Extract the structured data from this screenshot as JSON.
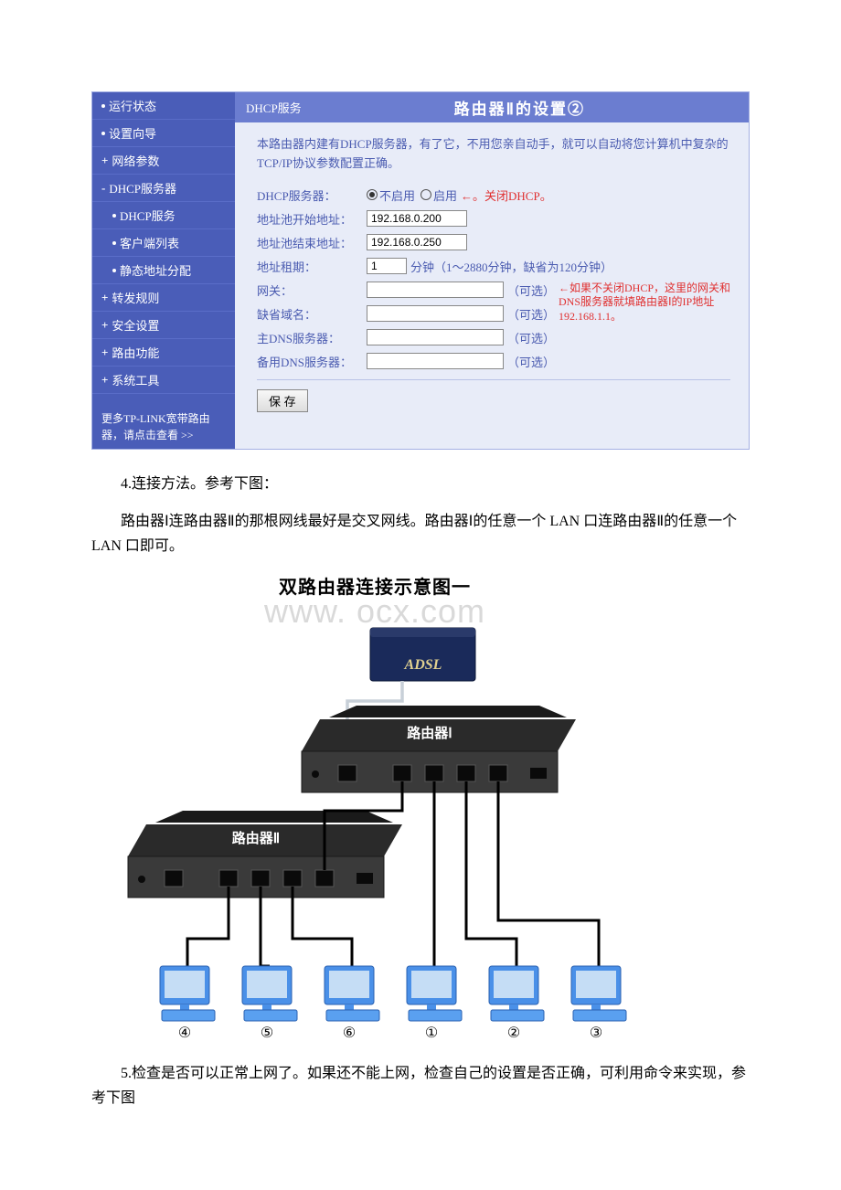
{
  "router_ui": {
    "sidebar": {
      "items": [
        {
          "prefix": "•",
          "label": "运行状态",
          "sub": false
        },
        {
          "prefix": "•",
          "label": "设置向导",
          "sub": false
        },
        {
          "prefix": "+",
          "label": "网络参数",
          "sub": false
        },
        {
          "prefix": "-",
          "label": "DHCP服务器",
          "sub": false
        },
        {
          "prefix": "•",
          "label": "DHCP服务",
          "sub": true
        },
        {
          "prefix": "•",
          "label": "客户端列表",
          "sub": true
        },
        {
          "prefix": "•",
          "label": "静态地址分配",
          "sub": true
        },
        {
          "prefix": "+",
          "label": "转发规则",
          "sub": false
        },
        {
          "prefix": "+",
          "label": "安全设置",
          "sub": false
        },
        {
          "prefix": "+",
          "label": "路由功能",
          "sub": false
        },
        {
          "prefix": "+",
          "label": "系统工具",
          "sub": false
        }
      ],
      "footer": "更多TP-LINK宽带路由器，请点击查看 >>",
      "colors": {
        "bg": "#4a5db8",
        "text": "#ffffff"
      }
    },
    "panel": {
      "header_label": "DHCP服务",
      "title": "路由器Ⅱ的设置②",
      "description": "本路由器内建有DHCP服务器，有了它，不用您亲自动手，就可以自动将您计算机中复杂的TCP/IP协议参数配置正确。",
      "dhcp_server": {
        "label": "DHCP服务器：",
        "option_disable": "不启用",
        "option_enable": "启用",
        "selected": "disable",
        "annotation": "←。关闭DHCP。"
      },
      "start_ip": {
        "label": "地址池开始地址：",
        "value": "192.168.0.200"
      },
      "end_ip": {
        "label": "地址池结束地址：",
        "value": "192.168.0.250"
      },
      "lease": {
        "label": "地址租期：",
        "value": "1",
        "suffix": "分钟（1～2880分钟，缺省为120分钟）"
      },
      "gateway": {
        "label": "网关：",
        "value": "",
        "optional": "（可选）"
      },
      "domain": {
        "label": "缺省域名：",
        "value": "",
        "optional": "（可选）"
      },
      "dns1": {
        "label": "主DNS服务器：",
        "value": "",
        "optional": "（可选）"
      },
      "dns2": {
        "label": "备用DNS服务器：",
        "value": "",
        "optional": "（可选）"
      },
      "gateway_note": "←如果不关闭DHCP，这里的网关和DNS服务器就填路由器Ⅰ的IP地址192.168.1.1。",
      "save_button": "保 存",
      "colors": {
        "header_bg": "#6b7dd0",
        "body_bg": "#e8ecf8",
        "text": "#4a5bb0",
        "annotation": "#e03030"
      }
    }
  },
  "doc": {
    "p1": "4.连接方法。参考下图：",
    "p2": "路由器Ⅰ连路由器Ⅱ的那根网线最好是交叉网线。路由器Ⅰ的任意一个 LAN 口连路由器Ⅱ的任意一个 LAN 口即可。",
    "p3": "5.检查是否可以正常上网了。如果还不能上网，检查自己的设置是否正确，可利用命令来实现，参考下图"
  },
  "diagram": {
    "title": "双路由器连接示意图一",
    "watermark": "www.          ocx.com",
    "labels": {
      "adsl": "ADSL",
      "router1": "路由器Ⅰ",
      "router2": "路由器Ⅱ"
    },
    "pc_labels": [
      "④",
      "⑤",
      "⑥",
      "①",
      "②",
      "③"
    ],
    "colors": {
      "router_body": "#3a3a3a",
      "router_top": "#2a2a2a",
      "adsl_body": "#1a2a5a",
      "pc_body": "#4a90e8",
      "pc_screen": "#c5ddf5",
      "cable": "#000000",
      "cable_adsl": "#c8d0d8"
    }
  }
}
